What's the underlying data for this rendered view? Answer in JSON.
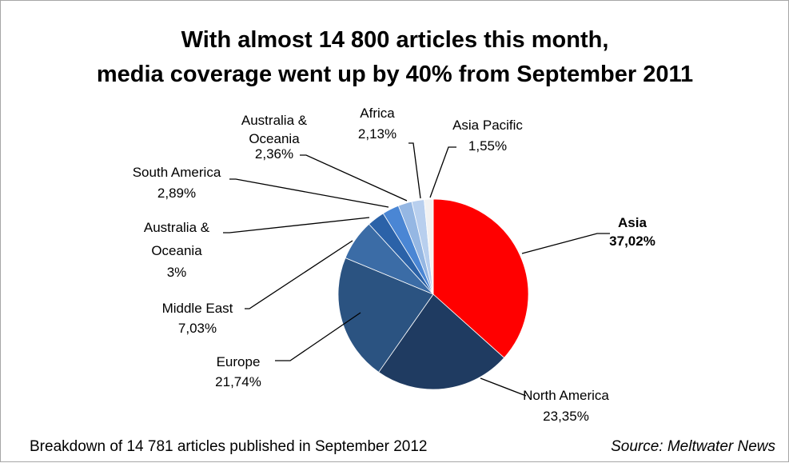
{
  "chart_data": {
    "type": "pie",
    "title_lines": [
      "With almost 14 800 articles this month,",
      "media coverage went up by 40% from September 2011"
    ],
    "slices": [
      {
        "name": "Asia",
        "value": 37.02,
        "label": "37,02%",
        "color": "#ff0000",
        "bold": true
      },
      {
        "name": "North America",
        "value": 23.35,
        "label": "23,35%",
        "color": "#1f3b61"
      },
      {
        "name": "Europe",
        "value": 21.74,
        "label": "21,74%",
        "color": "#2b5381"
      },
      {
        "name": "Middle East",
        "value": 7.03,
        "label": "7,03%",
        "color": "#3b6ca6"
      },
      {
        "name": "Australia & Oceania",
        "value": 3,
        "label": "3%",
        "color": "#2b62a8"
      },
      {
        "name": "South America",
        "value": 2.89,
        "label": "2,89%",
        "color": "#4a86d4"
      },
      {
        "name": "Australia & Oceania",
        "value": 2.36,
        "label": "2,36%",
        "color": "#95b7e3"
      },
      {
        "name": "Africa",
        "value": 2.13,
        "label": "2,13%",
        "color": "#b8cfee"
      },
      {
        "name": "Asia Pacific",
        "value": 1.55,
        "label": "1,55%",
        "color": "#f2f2f2"
      }
    ],
    "legend": "none"
  },
  "footer": {
    "caption": "Breakdown of 14 781 articles published in September 2012",
    "source": "Source: Meltwater News"
  }
}
